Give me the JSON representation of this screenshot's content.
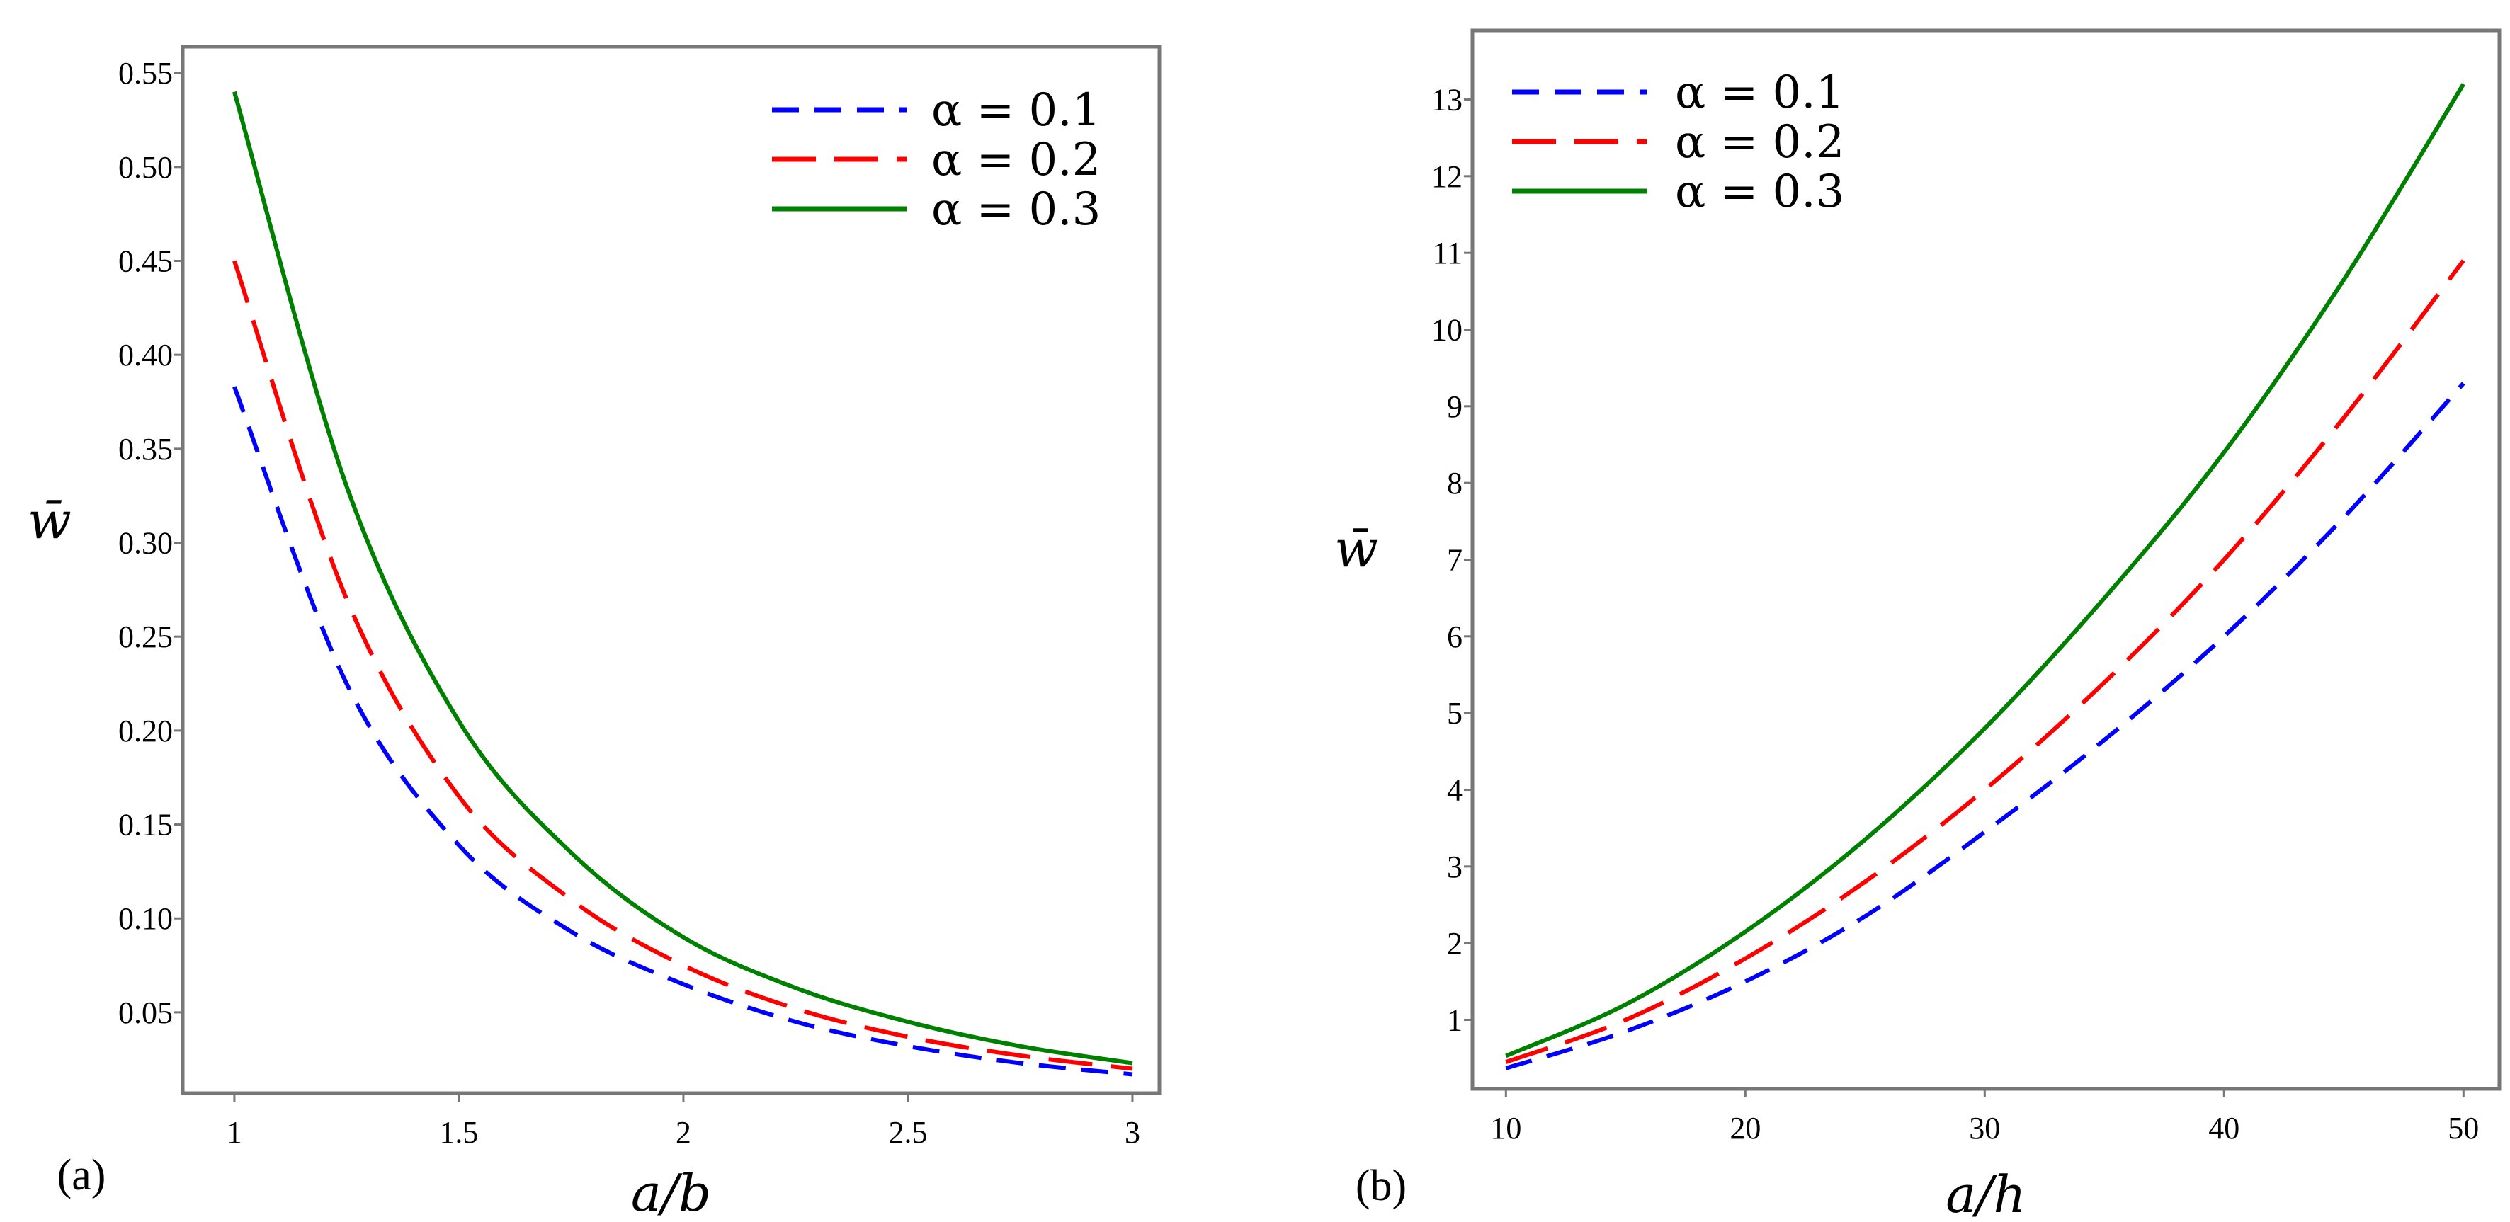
{
  "chart_data": [
    {
      "type": "line",
      "panel_label": "(a)",
      "xlabel": "a/b",
      "ylabel": "w̄",
      "xlim": [
        0.885,
        3.06
      ],
      "ylim": [
        0.007,
        0.564
      ],
      "xticks": [
        1,
        1.5,
        2,
        2.5,
        3
      ],
      "xtick_labels": [
        "1",
        "1.5",
        "2",
        "2.5",
        "3"
      ],
      "yticks": [
        0.05,
        0.1,
        0.15,
        0.2,
        0.25,
        0.3,
        0.35,
        0.4,
        0.45,
        0.5,
        0.55
      ],
      "ytick_labels": [
        "0.05",
        "0.10",
        "0.15",
        "0.20",
        "0.25",
        "0.30",
        "0.35",
        "0.40",
        "0.45",
        "0.50",
        "0.55"
      ],
      "legend_position": "top-right",
      "grid": false,
      "x": [
        1,
        1.25,
        1.5,
        1.75,
        2,
        2.25,
        2.5,
        2.75,
        3
      ],
      "series": [
        {
          "name": "α = 0.1",
          "color": "#0000ff",
          "dash": "short",
          "values": [
            0.383,
            0.225,
            0.139,
            0.093,
            0.065,
            0.045,
            0.032,
            0.023,
            0.017
          ]
        },
        {
          "name": "α = 0.2",
          "color": "#ff0000",
          "dash": "long",
          "values": [
            0.45,
            0.27,
            0.165,
            0.11,
            0.075,
            0.052,
            0.037,
            0.027,
            0.02
          ]
        },
        {
          "name": "α = 0.3",
          "color": "#008000",
          "dash": "solid",
          "values": [
            0.54,
            0.33,
            0.205,
            0.135,
            0.09,
            0.063,
            0.045,
            0.032,
            0.023
          ]
        }
      ]
    },
    {
      "type": "line",
      "panel_label": "(b)",
      "xlabel": "a/h",
      "ylabel": "w̄",
      "xlim": [
        8.6,
        51.5
      ],
      "ylim": [
        0.1,
        13.9
      ],
      "xticks": [
        10,
        20,
        30,
        40,
        50
      ],
      "xtick_labels": [
        "10",
        "20",
        "30",
        "40",
        "50"
      ],
      "yticks": [
        1,
        2,
        3,
        4,
        5,
        6,
        7,
        8,
        9,
        10,
        11,
        12,
        13
      ],
      "ytick_labels": [
        "1",
        "2",
        "3",
        "4",
        "5",
        "6",
        "7",
        "8",
        "9",
        "10",
        "11",
        "12",
        "13"
      ],
      "legend_position": "top-left",
      "grid": false,
      "x": [
        10,
        15,
        20,
        25,
        30,
        35,
        40,
        45,
        50
      ],
      "series": [
        {
          "name": "α = 0.1",
          "color": "#0000ff",
          "dash": "short",
          "values": [
            0.37,
            0.85,
            1.5,
            2.35,
            3.45,
            4.65,
            6.0,
            7.55,
            9.3
          ]
        },
        {
          "name": "α = 0.2",
          "color": "#ff0000",
          "dash": "long",
          "values": [
            0.45,
            1.0,
            1.8,
            2.8,
            4.0,
            5.4,
            7.0,
            8.85,
            10.9
          ]
        },
        {
          "name": "α = 0.3",
          "color": "#008000",
          "dash": "solid",
          "values": [
            0.53,
            1.2,
            2.15,
            3.35,
            4.8,
            6.5,
            8.4,
            10.65,
            13.2
          ]
        }
      ]
    }
  ]
}
